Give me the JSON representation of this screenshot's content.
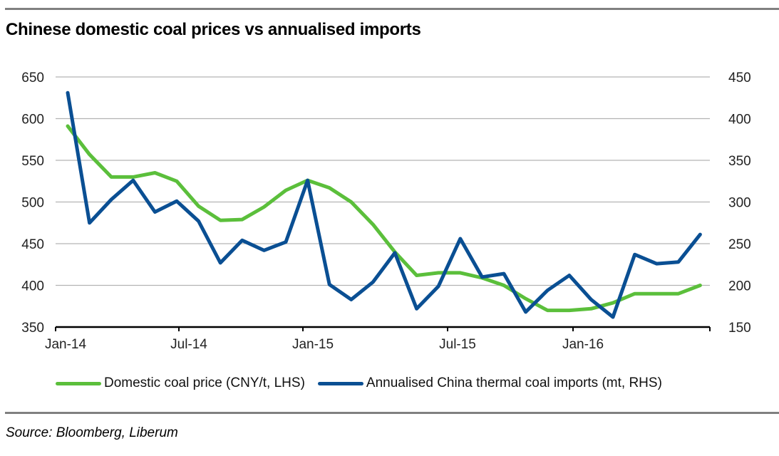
{
  "page": {
    "title": "Chinese domestic coal prices vs annualised imports",
    "source": "Source: Bloomberg, Liberum"
  },
  "colors": {
    "domestic": "#5bbf3b",
    "imports": "#0a4f93",
    "grid": "#b3b3b3",
    "axis": "#000000",
    "rule": "#808080"
  },
  "chart_data": {
    "type": "line",
    "title": "Chinese domestic coal prices vs annualised imports",
    "xlabel": "",
    "ylabel_left": "CNY/t",
    "ylabel_right": "mt",
    "x": [
      "Jan-14",
      "Feb-14",
      "Mar-14",
      "Apr-14",
      "May-14",
      "Jun-14",
      "Jul-14",
      "Aug-14",
      "Sep-14",
      "Oct-14",
      "Nov-14",
      "Dec-14",
      "Jan-15",
      "Feb-15",
      "Mar-15",
      "Apr-15",
      "May-15",
      "Jun-15",
      "Jul-15",
      "Aug-15",
      "Sep-15",
      "Oct-15",
      "Nov-15",
      "Dec-15",
      "Jan-16",
      "Feb-16",
      "Mar-16",
      "Apr-16",
      "May-16",
      "Jun-16"
    ],
    "x_tick_labels": [
      "Jan-14",
      "Jul-14",
      "Jan-15",
      "Jul-15",
      "Jan-16"
    ],
    "ylim_left": [
      350,
      650
    ],
    "yticks_left": [
      350,
      400,
      450,
      500,
      550,
      600,
      650
    ],
    "ylim_right": [
      150,
      450
    ],
    "yticks_right": [
      150,
      200,
      250,
      300,
      350,
      400,
      450
    ],
    "grid": true,
    "legend_position": "bottom",
    "series": [
      {
        "name": "Domestic coal price (CNY/t, LHS)",
        "axis": "left",
        "color_key": "domestic",
        "values": [
          591,
          557,
          530,
          530,
          535,
          525,
          495,
          478,
          479,
          494,
          514,
          526,
          517,
          500,
          473,
          440,
          412,
          415,
          415,
          409,
          400,
          384,
          370,
          370,
          372,
          379,
          390,
          390,
          390,
          400
        ]
      },
      {
        "name": "Annualised China thermal coal imports (mt, RHS)",
        "axis": "right",
        "color_key": "imports",
        "values": [
          431,
          275,
          303,
          326,
          288,
          301,
          277,
          227,
          254,
          242,
          252,
          326,
          201,
          183,
          204,
          239,
          172,
          199,
          256,
          210,
          214,
          168,
          194,
          212,
          183,
          162,
          237,
          226,
          228,
          261
        ]
      }
    ]
  }
}
